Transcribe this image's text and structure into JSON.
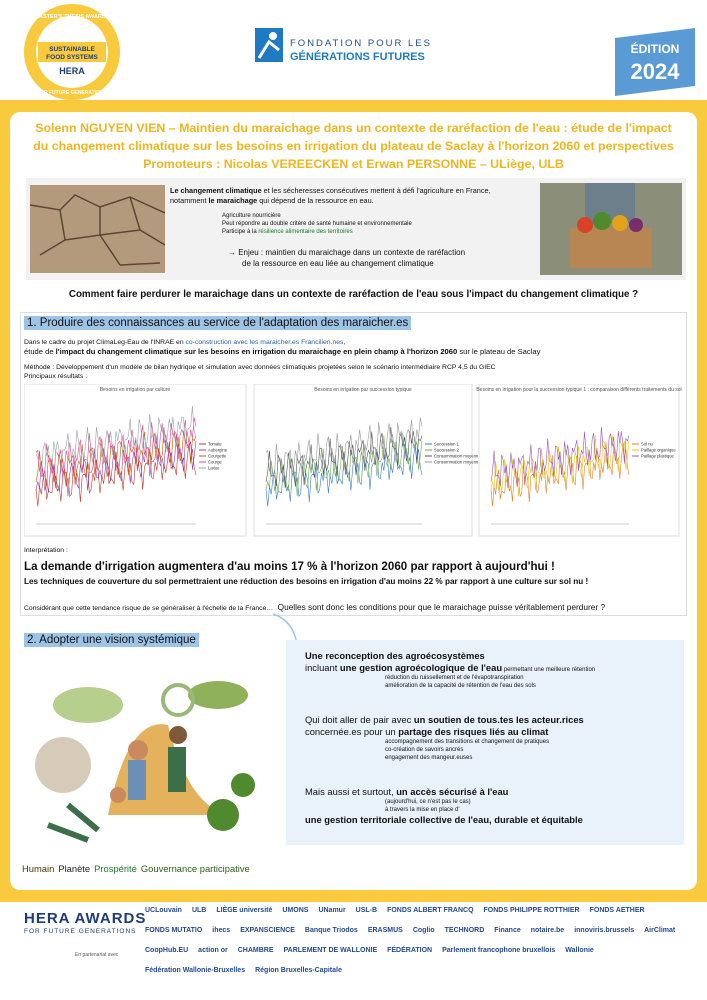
{
  "header": {
    "badge": {
      "top": "MASTER'S THESIS AWARDS",
      "line1": "SUSTAINABLE",
      "line2": "FOOD SYSTEMS",
      "brand": "HERA",
      "bottom": "FOR FUTURE GENERATIONS"
    },
    "foundation": {
      "line1": "FONDATION POUR LES",
      "line2": "GÉNÉRATIONS FUTURES"
    },
    "edition": {
      "label": "ÉDITION",
      "year": "2024"
    }
  },
  "title": {
    "lines": [
      "Solenn NGUYEN VIEN – Maintien du maraichage dans un contexte de raréfaction de l'eau : étude de l'impact",
      "du changement climatique sur les besoins en irrigation du plateau de Saclay à l'horizon 2060 et perspectives",
      "Promoteurs : Nicolas VEREECKEN et Erwan PERSONNE – ULiège, ULB"
    ]
  },
  "intro": {
    "p1": [
      "Le changement climatique",
      " et les sécheresses consécutives mettent à défi l'agriculture en France,",
      "notamment ",
      "le maraichage",
      " qui dépend de la ressource en eau."
    ],
    "bullets": [
      "Agriculture nourricière",
      "Peut répondre au double critère de santé humaine et environnementale",
      "Participe à la ",
      "résilience alimentaire des territoires"
    ],
    "stake": [
      "→ Enjeu : maintien du maraichage dans un contexte de raréfaction",
      "de la ressource en eau liée au changement climatique"
    ]
  },
  "question": "Comment faire perdurer le maraichage dans un contexte de raréfaction de l'eau sous l'impact du changement climatique ?",
  "section1": {
    "heading": "1. Produire des connaissances au service de l'adaptation des maraicher.es",
    "context": [
      "Dans le cadre du projet ClimaLeg-Eau de l'INRAE en ",
      "co-construction avec les maraicher.es Francilien.nes",
      ","
    ],
    "study": [
      "étude de ",
      "l'impact du changement climatique sur les besoins en irrigation du maraichage en plein champ à l'horizon 2060",
      " sur le plateau de Saclay"
    ],
    "method": "Méthode : Développement d'un modèle de bilan hydrique et simulation avec données climatiques projetées selon le scénario intermédiaire RCP 4,5 du GIEC",
    "results_label": "Principaux résultats :",
    "charts": [
      {
        "title": "Besoins en irrigation par culture",
        "legend": [
          "Tomate",
          "Aubergine",
          "Courgette",
          "Courge",
          "Laitue"
        ]
      },
      {
        "title": "Besoins en irrigation par succession typique",
        "legend": [
          "Succession 1",
          "Succession 2",
          "Consommation moyenne max",
          "Consommation moyenne min"
        ]
      },
      {
        "title": "Besoins en irrigation pour la succession typique 1 : comparaison différents traitements du sol",
        "legend": [
          "Sol nu",
          "Paillage organique",
          "Paillage plastique"
        ]
      }
    ],
    "interpretation": "Interprétation :",
    "finding1": "La demande d'irrigation augmentera d'au moins 17 % à l'horizon 2060 par rapport à aujourd'hui !",
    "finding2": "Les techniques de couverture du sol permettraient une réduction des besoins en irrigation d'au moins 22 % par rapport à une culture sur sol nu !",
    "consider": "Considérant que cette tendance risque de se généraliser à l'échelle de la France…",
    "ask": "Quelles sont donc les conditions pour que le maraichage puisse véritablement perdurer ?"
  },
  "section2": {
    "heading": "2. Adopter une vision systémique",
    "block1": {
      "head": "Une reconception des agroécosystèmes",
      "line": [
        "incluant ",
        "une gestion agroécologique de l'eau",
        " permettant une meilleure rétention"
      ],
      "subs": [
        "réduction du ruissellement et de l'évapotranspiration",
        "amélioration de la capacité de rétention de l'eau des sols"
      ]
    },
    "block2": {
      "line1": [
        "Qui doit aller de pair avec ",
        "un soutien de tous.tes les acteur.rices"
      ],
      "line2": [
        "concernée.es pour un ",
        "partage des risques liés au climat"
      ],
      "subs": [
        "accompagnement des transitions et changement de pratiques",
        "co-création de savoirs ancrés",
        "engagement des mangeur.euses"
      ]
    },
    "block3": {
      "line1": [
        "Mais aussi et surtout, ",
        "un accès sécurisé à l'eau"
      ],
      "subs": [
        "(aujourd'hui, ce n'est pas le cas)",
        "à travers la mise en place d'"
      ],
      "last": "une gestion territoriale collective de l'eau, durable et équitable"
    }
  },
  "pillars": [
    "Humain",
    "Planète",
    "Prospérité",
    "Gouvernance participative"
  ],
  "footer": {
    "brand": "HERA AWARDS",
    "tagline": "FOR FUTURE GENERATIONS",
    "partner_note": "En partenariat avec",
    "partners": [
      "UCLouvain",
      "ULB",
      "LIÈGE université",
      "UMONS",
      "UNamur",
      "USL-B",
      "FONDS ALBERT FRANCQ",
      "FONDS PHILIPPE ROTTHIER",
      "FONDS AETHER",
      "FONDS MUTATIO",
      "ihecs",
      "EXPANSCIENCE",
      "Banque Triodos",
      "ERASMUS",
      "Coglio",
      "TECHNORD",
      "Finance",
      "notaire.be",
      "innoviris.brussels",
      "AirClimat",
      "CoopHub.EU",
      "action or",
      "CHAMBRE",
      "PARLEMENT DE WALLONIE",
      "FÉDÉRATION",
      "Parlement francophone bruxellois",
      "Wallonie",
      "Fédération Wallonie-Bruxelles",
      "Région Bruxelles-Capitale"
    ]
  }
}
